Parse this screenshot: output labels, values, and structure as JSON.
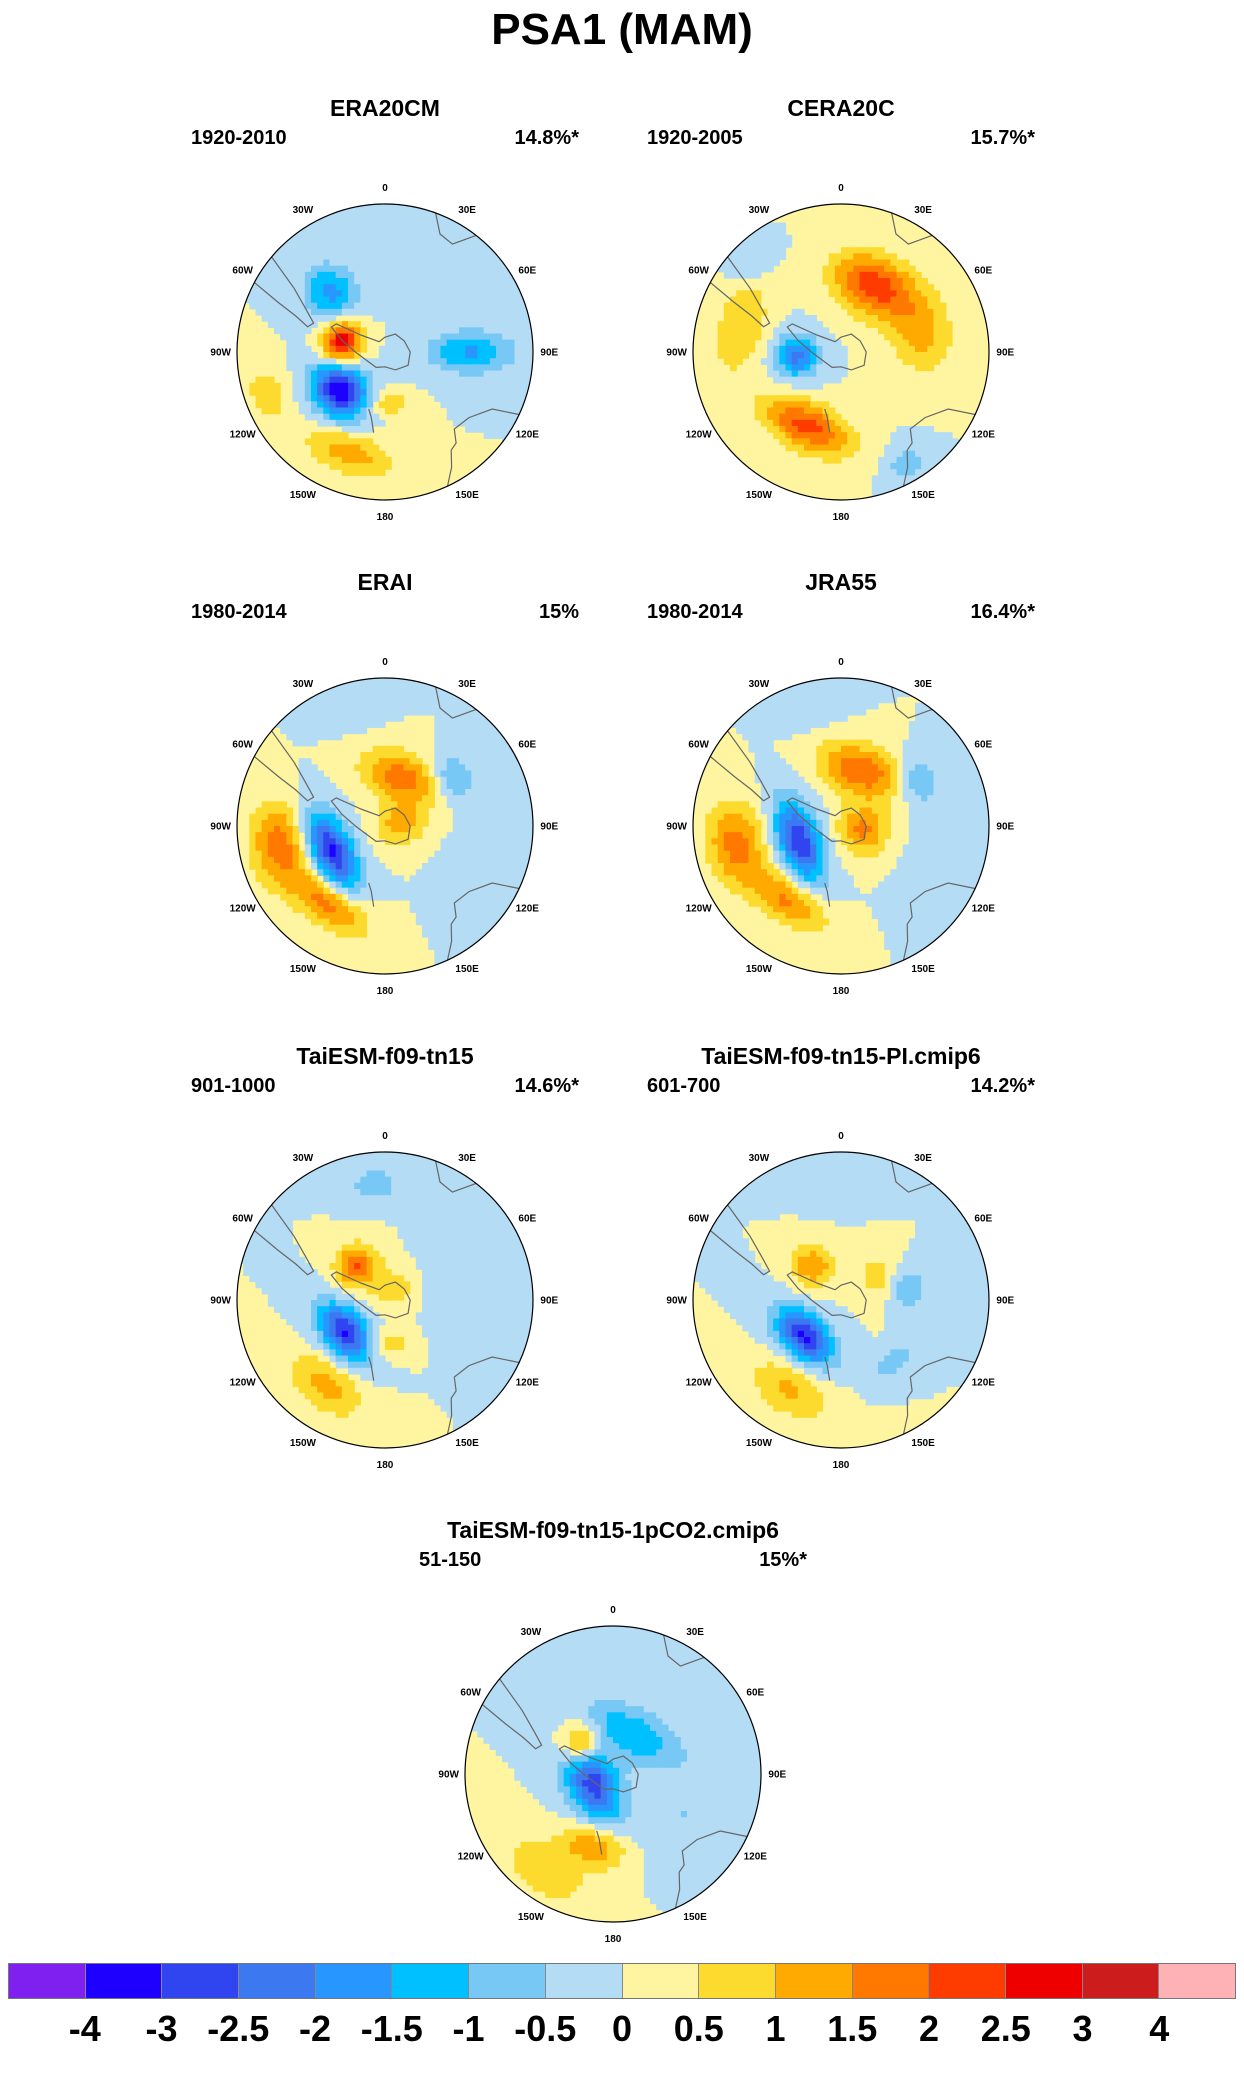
{
  "title": "PSA1 (MAM)",
  "lon_labels": [
    "0",
    "30E",
    "60E",
    "90E",
    "120E",
    "150E",
    "180",
    "150W",
    "120W",
    "90W",
    "60W",
    "30W"
  ],
  "panels": [
    {
      "title": "ERA20CM",
      "period": "1920-2010",
      "variance": "14.8%*",
      "blobs": [
        {
          "lon": -42,
          "r": 0.55,
          "l": 0.12,
          "w": 0.13,
          "v": -1.7
        },
        {
          "lon": -78,
          "r": 0.3,
          "l": 0.1,
          "w": 0.09,
          "v": 3.0
        },
        {
          "lon": -130,
          "r": 0.4,
          "l": 0.14,
          "w": 0.12,
          "v": -3.5
        },
        {
          "lon": -160,
          "r": 0.72,
          "l": 0.22,
          "w": 0.1,
          "v": 1.3
        },
        {
          "lon": 90,
          "r": 0.58,
          "l": 0.1,
          "w": 0.2,
          "v": -1.6
        },
        {
          "lon": 175,
          "r": 0.35,
          "l": 0.1,
          "w": 0.06,
          "v": 0.9
        },
        {
          "lon": -110,
          "r": 0.85,
          "l": 0.14,
          "w": 0.1,
          "v": 0.8
        }
      ]
    },
    {
      "title": "CERA20C",
      "period": "1920-2005",
      "variance": "15.7%*",
      "blobs": [
        {
          "lon": 25,
          "r": 0.5,
          "l": 0.2,
          "w": 0.14,
          "v": 2.3
        },
        {
          "lon": -95,
          "r": 0.3,
          "l": 0.1,
          "w": 0.1,
          "v": -2.2
        },
        {
          "lon": -155,
          "r": 0.55,
          "l": 0.22,
          "w": 0.11,
          "v": 2.2
        },
        {
          "lon": 75,
          "r": 0.55,
          "l": 0.2,
          "w": 0.15,
          "v": 1.2
        },
        {
          "lon": 150,
          "r": 0.88,
          "l": 0.1,
          "w": 0.08,
          "v": -0.8
        },
        {
          "lon": -45,
          "r": 0.85,
          "l": 0.12,
          "w": 0.08,
          "v": -0.7
        },
        {
          "lon": -75,
          "r": 0.7,
          "l": 0.25,
          "w": 0.12,
          "v": 1.0
        }
      ]
    },
    {
      "title": "ERAI",
      "period": "1980-2014",
      "variance": "15%",
      "blobs": [
        {
          "lon": -115,
          "r": 0.4,
          "l": 0.2,
          "w": 0.1,
          "v": -3.2
        },
        {
          "lon": -100,
          "r": 0.72,
          "l": 0.2,
          "w": 0.14,
          "v": 1.8
        },
        {
          "lon": -145,
          "r": 0.65,
          "l": 0.2,
          "w": 0.1,
          "v": 1.8
        },
        {
          "lon": 20,
          "r": 0.35,
          "l": 0.2,
          "w": 0.12,
          "v": 1.8
        },
        {
          "lon": 85,
          "r": 0.1,
          "l": 0.1,
          "w": 0.12,
          "v": 1.2
        },
        {
          "lon": 55,
          "r": 0.55,
          "l": 0.12,
          "w": 0.1,
          "v": -1.2
        },
        {
          "lon": 110,
          "r": 0.75,
          "l": 0.2,
          "w": 0.15,
          "v": -0.5
        },
        {
          "lon": -15,
          "r": 0.85,
          "l": 0.15,
          "w": 0.1,
          "v": -0.5
        }
      ]
    },
    {
      "title": "JRA55",
      "period": "1980-2014",
      "variance": "16.4%*",
      "blobs": [
        {
          "lon": -110,
          "r": 0.3,
          "l": 0.2,
          "w": 0.1,
          "v": -3.0
        },
        {
          "lon": -100,
          "r": 0.72,
          "l": 0.2,
          "w": 0.14,
          "v": 1.7
        },
        {
          "lon": -145,
          "r": 0.62,
          "l": 0.2,
          "w": 0.1,
          "v": 1.6
        },
        {
          "lon": 20,
          "r": 0.4,
          "l": 0.2,
          "w": 0.12,
          "v": 2.0
        },
        {
          "lon": 100,
          "r": 0.15,
          "l": 0.12,
          "w": 0.12,
          "v": 1.6
        },
        {
          "lon": 60,
          "r": 0.6,
          "l": 0.12,
          "w": 0.1,
          "v": -1.1
        },
        {
          "lon": 110,
          "r": 0.75,
          "l": 0.2,
          "w": 0.15,
          "v": -0.5
        },
        {
          "lon": -15,
          "r": 0.85,
          "l": 0.15,
          "w": 0.1,
          "v": -0.5
        }
      ]
    },
    {
      "title": "TaiESM-f09-tn15",
      "period": "901-1000",
      "variance": "14.6%*",
      "blobs": [
        {
          "lon": -130,
          "r": 0.35,
          "l": 0.16,
          "w": 0.1,
          "v": -3.1
        },
        {
          "lon": -40,
          "r": 0.3,
          "l": 0.1,
          "w": 0.1,
          "v": 2.0
        },
        {
          "lon": -145,
          "r": 0.7,
          "l": 0.2,
          "w": 0.12,
          "v": 1.2
        },
        {
          "lon": -5,
          "r": 0.78,
          "l": 0.12,
          "w": 0.08,
          "v": -0.9
        },
        {
          "lon": 80,
          "r": 0.5,
          "l": 0.2,
          "w": 0.15,
          "v": -0.5
        },
        {
          "lon": 175,
          "r": 0.3,
          "l": 0.1,
          "w": 0.07,
          "v": 0.9
        },
        {
          "lon": 40,
          "r": 0.1,
          "l": 0.1,
          "w": 0.1,
          "v": 0.8
        }
      ]
    },
    {
      "title": "TaiESM-f09-tn15-PI.cmip6",
      "period": "601-700",
      "variance": "14.2%*",
      "blobs": [
        {
          "lon": -135,
          "r": 0.35,
          "l": 0.16,
          "w": 0.1,
          "v": -3.1
        },
        {
          "lon": -40,
          "r": 0.3,
          "l": 0.1,
          "w": 0.1,
          "v": 1.5
        },
        {
          "lon": -150,
          "r": 0.7,
          "l": 0.2,
          "w": 0.12,
          "v": 1.1
        },
        {
          "lon": 0,
          "r": 0.8,
          "l": 0.15,
          "w": 0.1,
          "v": -0.4
        },
        {
          "lon": 80,
          "r": 0.45,
          "l": 0.1,
          "w": 0.1,
          "v": -1.0
        },
        {
          "lon": 140,
          "r": 0.55,
          "l": 0.12,
          "w": 0.06,
          "v": -0.9
        },
        {
          "lon": 60,
          "r": 0.3,
          "l": 0.12,
          "w": 0.1,
          "v": 0.8
        }
      ]
    },
    {
      "title": "TaiESM-f09-tn15-1pCO2.cmip6",
      "period": "51-150",
      "variance": "15%*",
      "blobs": [
        {
          "lon": -45,
          "r": 0.3,
          "l": 0.1,
          "w": 0.1,
          "v": 2.0
        },
        {
          "lon": -115,
          "r": 0.15,
          "l": 0.2,
          "w": 0.12,
          "v": -2.8
        },
        {
          "lon": 25,
          "r": 0.3,
          "l": 0.25,
          "w": 0.12,
          "v": -1.5
        },
        {
          "lon": -165,
          "r": 0.5,
          "l": 0.15,
          "w": 0.1,
          "v": 1.5
        },
        {
          "lon": -145,
          "r": 0.8,
          "l": 0.25,
          "w": 0.14,
          "v": 0.8
        },
        {
          "lon": 120,
          "r": 0.55,
          "l": 0.2,
          "w": 0.15,
          "v": -0.5
        }
      ]
    }
  ],
  "colorbar": {
    "colors": [
      "#7f1ff0",
      "#1d00ff",
      "#3045f0",
      "#3c78f0",
      "#2896ff",
      "#00c0ff",
      "#78c8f5",
      "#b4dcf5",
      "#fff5a0",
      "#fddb2e",
      "#ffaa00",
      "#ff7800",
      "#ff3c00",
      "#ee0000",
      "#cc1c1c",
      "#ffb2b6"
    ],
    "labels": [
      "-4",
      "-3",
      "-2.5",
      "-2",
      "-1.5",
      "-1",
      "-0.5",
      "0",
      "0.5",
      "1",
      "1.5",
      "2",
      "2.5",
      "3",
      "4"
    ],
    "levels": [
      -4,
      -3,
      -2.5,
      -2,
      -1.5,
      -1,
      -0.5,
      0,
      0.5,
      1,
      1.5,
      2,
      2.5,
      3,
      4
    ]
  }
}
